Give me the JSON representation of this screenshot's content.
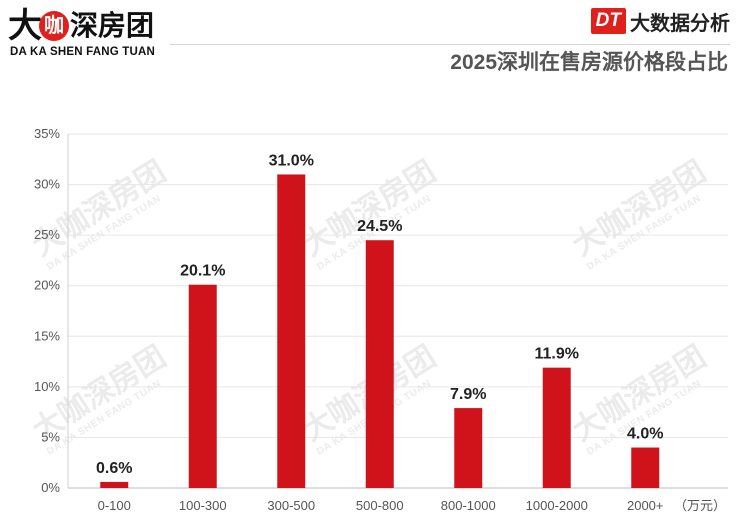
{
  "brand": {
    "logo_da": "大",
    "logo_ka": "咖",
    "logo_rest": "深房团",
    "subtitle": "DA KA SHEN FANG TUAN"
  },
  "badge": {
    "logo": "DT",
    "text": "大数据分析"
  },
  "watermark": {
    "text": "大咖深房团",
    "sub": "DA KA SHEN FANG TUAN"
  },
  "chart_data": {
    "type": "bar",
    "title": "2025深圳在售房源价格段占比",
    "categories": [
      "0-100",
      "100-300",
      "300-500",
      "500-800",
      "800-1000",
      "1000-2000",
      "2000+"
    ],
    "values": [
      0.6,
      20.1,
      31.0,
      24.5,
      7.9,
      11.9,
      4.0
    ],
    "value_labels": [
      "0.6%",
      "20.1%",
      "31.0%",
      "24.5%",
      "7.9%",
      "11.9%",
      "4.0%"
    ],
    "xunit": "（万元）",
    "yticks": [
      "0%",
      "5%",
      "10%",
      "15%",
      "20%",
      "25%",
      "30%",
      "35%"
    ],
    "ylim": [
      0,
      35
    ],
    "grid": true,
    "bar_color": "#d0121b"
  }
}
